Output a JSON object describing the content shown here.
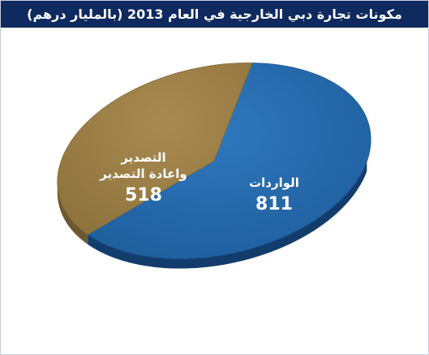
{
  "title": "مكونات تجارة دبي الخارجية في العام 2013 (بالمليار درهم)",
  "chart_data": {
    "type": "pie",
    "title": "مكونات تجارة دبي الخارجية في العام 2013 (بالمليار درهم)",
    "slices": [
      {
        "label": "الواردات",
        "value": 811,
        "color": "#1f64a6"
      },
      {
        "label_lines": [
          "التصدير",
          "واعادة التصدير"
        ],
        "value": 518,
        "color": "#9c7f46"
      }
    ],
    "legend": "none",
    "grid": false
  },
  "colors": {
    "header": "#0f2a5f",
    "imports": "#1f64a6",
    "imports_edge": "#123c6c",
    "exports": "#9c7f46",
    "exports_edge": "#6c5731"
  }
}
